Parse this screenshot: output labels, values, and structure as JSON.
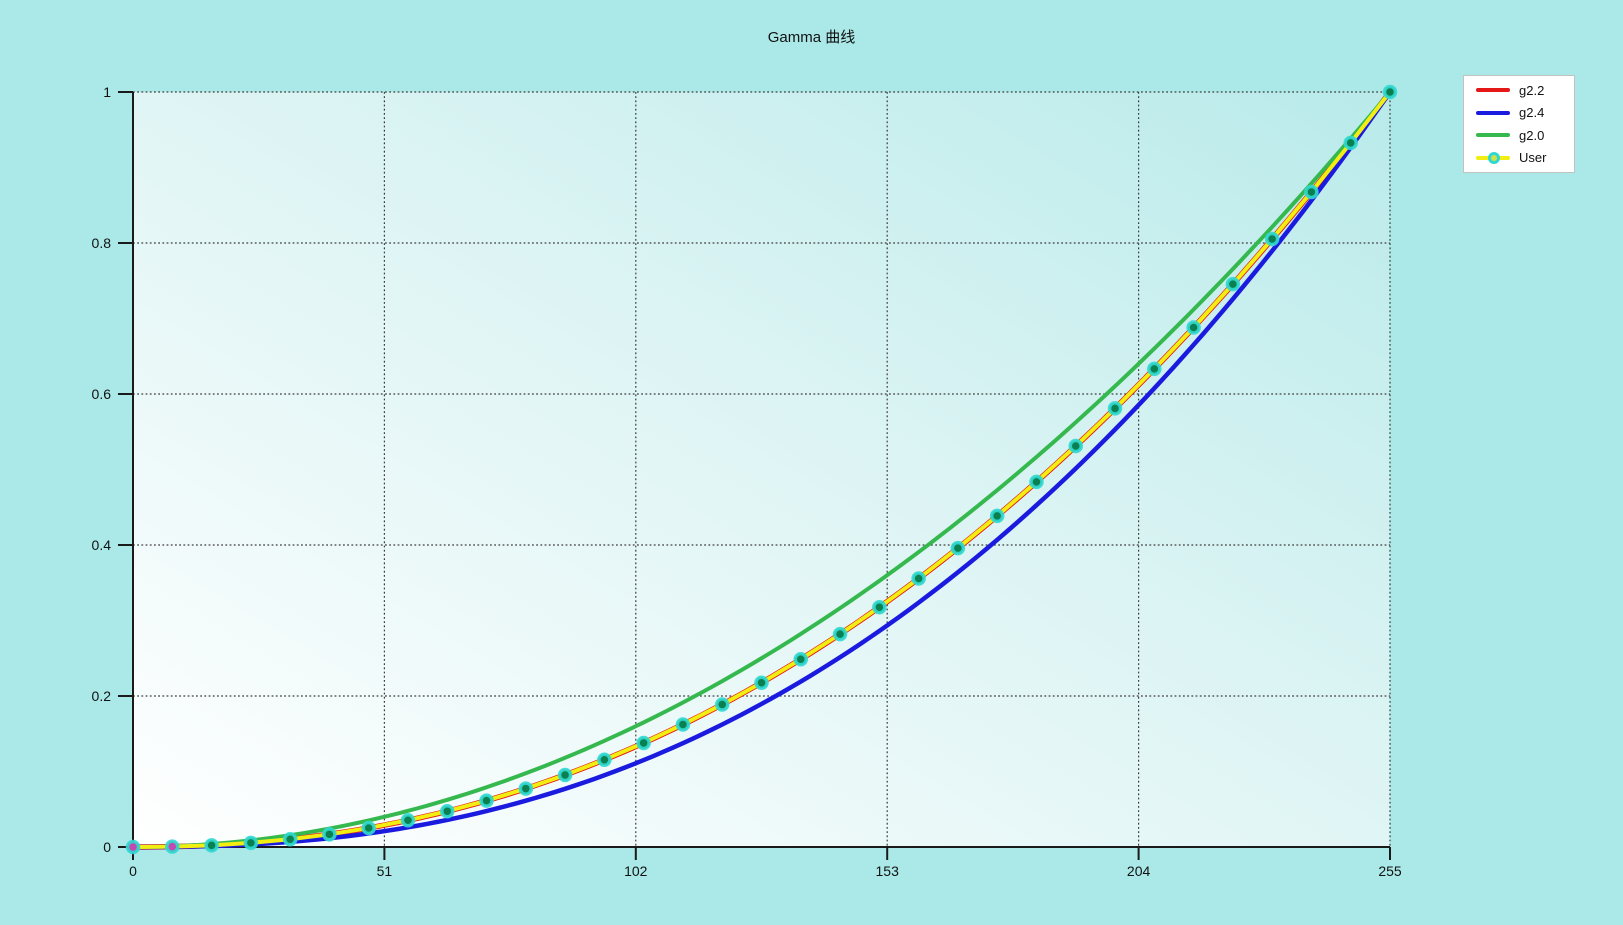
{
  "page": {
    "background": "#abe9e9"
  },
  "chart_data": {
    "type": "line",
    "title": "Gamma 曲线",
    "xlabel": "",
    "ylabel": "",
    "xlim": [
      0,
      255
    ],
    "ylim": [
      0,
      1
    ],
    "x_ticks": [
      0,
      51,
      102,
      153,
      204,
      255
    ],
    "x_tick_labels": [
      "0",
      "51",
      "102",
      "153",
      "204",
      "255"
    ],
    "y_ticks": [
      0,
      0.2,
      0.4,
      0.6,
      0.8,
      1
    ],
    "y_tick_labels": [
      "0",
      "0.2",
      "0.4",
      "0.6",
      "0.8",
      "1"
    ],
    "grid": true,
    "grid_style": "dotted",
    "grid_color": "#3c3c3c",
    "axis_color": "#1a1a1a",
    "label_color": "#111111",
    "plot_background": {
      "from": "#ffffff",
      "mid": "#ddf4f4",
      "to": "#b9eaea",
      "direction": "bottom-left to top-right"
    },
    "series": [
      {
        "name": "g2.2",
        "color": "#e61717",
        "gamma": 2.2,
        "line_width": 5.5,
        "markers": null
      },
      {
        "name": "g2.4",
        "color": "#1b1be0",
        "gamma": 2.4,
        "line_width": 4.5,
        "markers": null
      },
      {
        "name": "g2.0",
        "color": "#35b94f",
        "gamma": 2.0,
        "line_width": 4,
        "markers": null
      },
      {
        "name": "User",
        "color": "#f2ee12",
        "gamma": 2.2,
        "line_width": 4,
        "markers": {
          "ring_color": "#30d8d0",
          "fill_color": "#0a8050",
          "selected_fill_color": "#c24ab0",
          "selected_indices": [
            0,
            1
          ],
          "legend_fill_color": "#cfe24a"
        },
        "points_x": [
          0,
          7.97,
          15.94,
          23.91,
          31.88,
          39.84,
          47.81,
          55.78,
          63.75,
          71.72,
          79.69,
          87.66,
          95.63,
          103.59,
          111.56,
          119.53,
          127.5,
          135.47,
          143.44,
          151.41,
          159.38,
          167.34,
          175.31,
          183.28,
          191.25,
          199.22,
          207.19,
          215.16,
          223.13,
          231.09,
          239.06,
          247.03,
          255
        ],
        "points_y": [
          0,
          0.0005,
          0.0022,
          0.0055,
          0.0103,
          0.0168,
          0.0252,
          0.0354,
          0.0474,
          0.0614,
          0.0774,
          0.0954,
          0.1156,
          0.1378,
          0.1623,
          0.1888,
          0.2176,
          0.2487,
          0.282,
          0.3176,
          0.3556,
          0.3959,
          0.4385,
          0.4836,
          0.5311,
          0.5809,
          0.6333,
          0.6881,
          0.7455,
          0.8053,
          0.8676,
          0.9326,
          1
        ]
      }
    ],
    "legend": {
      "position": "top-right",
      "background": "#ffffff",
      "border_color": "#c2c2c2"
    }
  }
}
